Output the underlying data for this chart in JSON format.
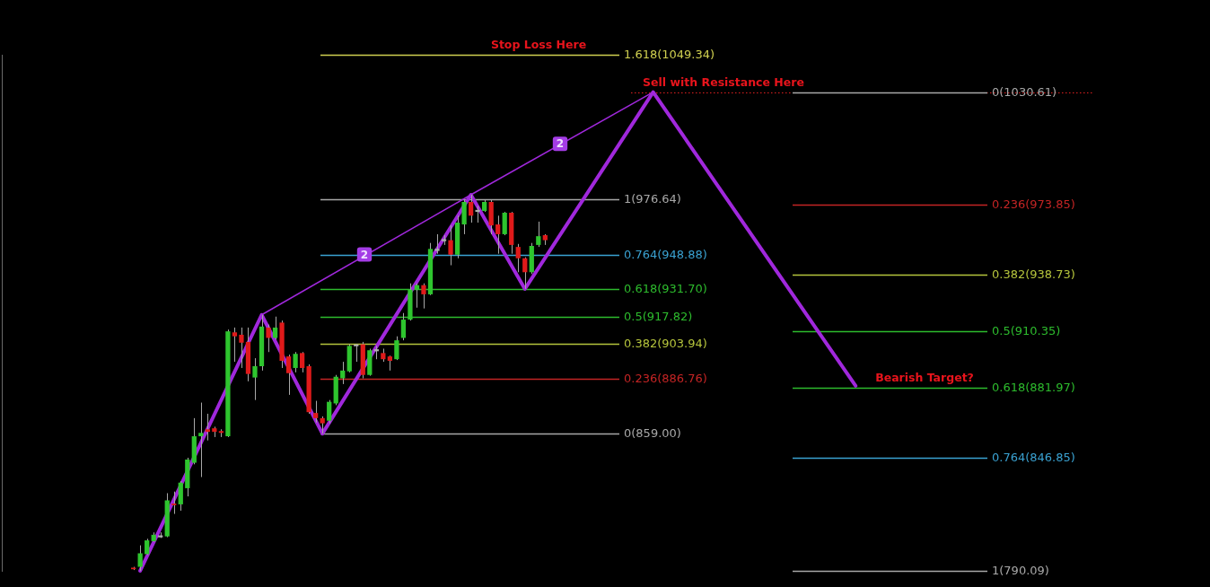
{
  "chart_data": {
    "type": "candlestick",
    "categories": [
      null,
      null,
      null,
      null,
      null,
      null,
      null,
      null,
      null,
      null,
      null,
      null,
      null,
      null,
      null,
      null,
      null,
      null,
      null,
      null,
      null,
      null,
      null,
      null,
      null,
      null,
      null,
      null,
      null,
      null,
      null,
      null,
      null,
      null,
      null,
      null,
      null,
      null,
      null,
      null,
      null,
      null,
      null,
      null,
      null,
      null,
      null,
      null,
      null,
      null,
      null,
      null,
      null,
      null,
      null,
      null,
      null,
      null,
      null,
      null,
      null,
      null,
      null,
      null,
      null,
      null,
      null,
      null,
      null,
      null,
      null,
      null,
      null,
      null,
      null,
      null,
      null,
      null,
      null,
      null,
      null,
      null,
      null,
      null,
      null,
      null,
      null,
      null,
      null,
      null,
      null,
      null,
      null,
      null,
      null,
      null,
      null,
      null,
      null,
      null,
      null,
      null,
      null,
      null,
      null,
      null,
      null,
      null,
      null,
      null,
      null,
      null,
      null,
      null,
      null,
      null,
      null,
      null,
      null,
      null,
      null,
      null,
      null,
      null,
      null,
      null,
      null,
      null,
      null,
      null,
      null,
      null,
      null,
      null,
      null,
      null,
      null,
      null,
      null,
      null,
      null,
      null,
      null,
      null,
      null,
      null,
      null,
      null,
      null,
      null,
      null,
      null,
      null,
      null,
      null,
      null,
      null,
      null,
      null,
      null,
      null,
      null,
      null,
      null,
      null,
      null,
      null,
      null,
      null,
      null,
      null,
      null,
      null,
      null,
      null,
      null,
      null,
      null,
      null
    ],
    "ohlc": [
      null,
      null,
      null,
      null,
      null,
      null,
      null,
      null,
      null,
      null,
      null,
      null,
      null,
      null,
      null,
      null,
      null,
      null,
      null,
      [
        791.7,
        792.1,
        790.5,
        790.9
      ],
      [
        792.1,
        802.9,
        790.1,
        798.9
      ],
      [
        798.5,
        806.2,
        798.0,
        805.4
      ],
      [
        805.0,
        809.4,
        804.6,
        808.2
      ],
      [
        807.9,
        809.4,
        806.6,
        806.9
      ],
      [
        807.4,
        829.1,
        807.0,
        825.5
      ],
      [
        823.9,
        829.9,
        818.7,
        823.1
      ],
      [
        823.5,
        835.2,
        820.3,
        834.4
      ],
      [
        831.6,
        846.9,
        827.5,
        846.0
      ],
      [
        844.4,
        866.8,
        843.6,
        857.7
      ],
      [
        857.7,
        874.6,
        837.2,
        859.4
      ],
      [
        861.2,
        869.0,
        855.6,
        859.9
      ],
      [
        861.7,
        862.5,
        857.3,
        859.9
      ],
      [
        860.3,
        861.2,
        857.3,
        859.4
      ],
      [
        857.7,
        911.3,
        857.3,
        910.4
      ],
      [
        909.9,
        912.3,
        895.1,
        907.9
      ],
      [
        908.7,
        912.3,
        892.0,
        904.7
      ],
      [
        905.1,
        912.3,
        885.3,
        889.0
      ],
      [
        887.2,
        896.9,
        875.9,
        892.9
      ],
      [
        892.9,
        918.7,
        890.7,
        912.8
      ],
      [
        912.3,
        913.8,
        900.0,
        907.1
      ],
      [
        907.1,
        917.8,
        906.3,
        912.3
      ],
      [
        914.8,
        915.8,
        892.0,
        895.6
      ],
      [
        897.8,
        898.7,
        878.5,
        889.4
      ],
      [
        892.0,
        900.0,
        889.8,
        899.1
      ],
      [
        899.5,
        900.0,
        889.8,
        892.0
      ],
      [
        892.9,
        893.8,
        869.0,
        869.8
      ],
      [
        869.4,
        875.5,
        864.6,
        866.8
      ],
      [
        866.8,
        867.7,
        859.0,
        864.2
      ],
      [
        865.5,
        875.9,
        864.2,
        875.0
      ],
      [
        874.2,
        888.5,
        873.3,
        887.6
      ],
      [
        886.8,
        895.1,
        883.9,
        890.7
      ],
      [
        890.3,
        903.9,
        889.8,
        903.1
      ],
      [
        903.8,
        904.0,
        895.1,
        902.9
      ],
      [
        903.9,
        905.1,
        886.8,
        888.5
      ],
      [
        888.5,
        901.7,
        888.1,
        900.9
      ],
      [
        901.4,
        903.1,
        896.4,
        900.4
      ],
      [
        899.5,
        901.7,
        895.1,
        896.4
      ],
      [
        897.8,
        898.2,
        890.7,
        895.6
      ],
      [
        896.4,
        907.9,
        896.0,
        905.9
      ],
      [
        907.1,
        919.6,
        905.9,
        916.3
      ],
      [
        916.3,
        934.5,
        915.8,
        931.3
      ],
      [
        931.3,
        934.5,
        922.3,
        933.6
      ],
      [
        933.6,
        934.5,
        921.9,
        929.0
      ],
      [
        929.0,
        954.8,
        928.6,
        951.8
      ],
      [
        951.8,
        959.2,
        949.4,
        950.8
      ],
      [
        956.7,
        958.7,
        953.8,
        955.7
      ],
      [
        956.2,
        963.6,
        943.6,
        948.9
      ],
      [
        948.9,
        968.5,
        947.1,
        965.0
      ],
      [
        964.1,
        976.6,
        959.2,
        975.4
      ],
      [
        975.4,
        979.0,
        965.0,
        968.5
      ],
      [
        971.4,
        973.4,
        965.0,
        970.4
      ],
      [
        970.9,
        976.6,
        970.4,
        975.4
      ],
      [
        975.4,
        976.6,
        959.2,
        963.6
      ],
      [
        964.1,
        968.5,
        949.4,
        959.2
      ],
      [
        959.2,
        970.4,
        958.7,
        970.0
      ],
      [
        970.0,
        970.4,
        949.4,
        953.8
      ],
      [
        952.8,
        954.3,
        940.1,
        947.1
      ],
      [
        947.1,
        947.6,
        931.7,
        940.1
      ],
      [
        940.1,
        954.8,
        939.2,
        953.3
      ],
      [
        953.8,
        965.5,
        952.8,
        958.2
      ],
      [
        958.7,
        959.2,
        953.8,
        956.2
      ],
      null,
      null,
      null,
      null,
      null,
      null,
      null,
      null,
      null,
      null,
      null,
      null,
      null,
      null,
      null,
      null,
      null,
      null,
      null,
      null,
      null,
      null,
      null,
      null,
      null,
      null,
      null,
      null,
      null,
      null,
      null,
      null,
      null,
      null,
      null,
      null,
      null,
      null,
      null,
      null,
      null,
      null,
      null,
      null,
      null,
      null,
      null,
      null,
      null,
      null,
      null,
      null,
      null,
      null,
      null,
      null,
      null,
      null,
      null,
      null,
      null,
      null,
      null,
      null,
      null,
      null,
      null,
      null,
      null,
      null,
      null,
      null,
      null,
      null,
      null,
      null,
      null,
      null,
      null,
      null,
      null,
      null,
      null,
      null,
      null,
      null,
      null,
      null,
      null,
      null,
      null,
      null,
      null,
      null,
      null,
      null,
      null,
      null
    ],
    "colors": [
      null,
      null,
      null,
      null,
      null,
      null,
      null,
      null,
      null,
      null,
      null,
      null,
      null,
      null,
      null,
      null,
      null,
      null,
      null,
      "#e01a1a",
      "#2ec52e",
      "#2ec52e",
      "#2ec52e",
      "#b0b0b0",
      "#2ec52e",
      "#e01a1a",
      "#2ec52e",
      "#2ec52e",
      "#2ec52e",
      "#2ec52e",
      "#e01a1a",
      "#e01a1a",
      "#e01a1a",
      "#2ec52e",
      "#e01a1a",
      "#e01a1a",
      "#e01a1a",
      "#2ec52e",
      "#2ec52e",
      "#e01a1a",
      "#2ec52e",
      "#e01a1a",
      "#e01a1a",
      "#2ec52e",
      "#e01a1a",
      "#e01a1a",
      "#e01a1a",
      "#e01a1a",
      "#2ec52e",
      "#2ec52e",
      "#2ec52e",
      "#2ec52e",
      "#b0b0b0",
      "#e01a1a",
      "#2ec52e",
      "#b0b0b0",
      "#e01a1a",
      "#e01a1a",
      "#2ec52e",
      "#2ec52e",
      "#2ec52e",
      "#2ec52e",
      "#e01a1a",
      "#2ec52e",
      "#b0b0b0",
      "#b0b0b0",
      "#e01a1a",
      "#2ec52e",
      "#2ec52e",
      "#e01a1a",
      "#b0b0b0",
      "#2ec52e",
      "#e01a1a",
      "#e01a1a",
      "#2ec52e",
      "#e01a1a",
      "#e01a1a",
      "#e01a1a",
      "#2ec52e",
      "#2ec52e",
      "#e01a1a",
      null,
      null,
      null,
      null,
      null,
      null,
      null,
      null,
      null,
      null,
      null,
      null,
      null,
      null,
      null,
      null,
      null,
      null,
      null,
      null,
      null,
      null,
      null,
      null,
      null,
      null,
      null,
      null,
      null,
      null,
      null,
      null,
      null,
      null,
      null,
      null,
      null,
      null,
      null,
      null,
      null,
      null,
      null,
      null,
      null,
      null,
      null,
      null,
      null,
      null,
      null,
      null,
      null,
      null,
      null,
      null,
      null,
      null,
      null,
      null,
      null,
      null,
      null,
      null,
      null,
      null,
      null,
      null,
      null,
      null,
      null,
      null,
      null,
      null,
      null,
      null,
      null,
      null,
      null,
      null,
      null,
      null,
      null,
      null,
      null,
      null,
      null,
      null,
      null,
      null,
      null,
      null,
      null,
      null,
      null,
      null,
      null,
      null
    ],
    "series": [
      {
        "type": "line",
        "color": "#a028dc",
        "values": [
          null,
          null,
          null,
          null,
          null,
          null,
          null,
          null,
          null,
          null,
          null,
          null,
          null,
          null,
          null,
          null,
          null,
          null,
          null,
          null,
          790.1,
          null,
          null,
          null,
          null,
          null,
          null,
          null,
          null,
          null,
          null,
          null,
          null,
          null,
          null,
          null,
          null,
          null,
          918.7,
          null,
          null,
          null,
          null,
          null,
          null,
          null,
          null,
          859.0,
          null,
          null,
          null,
          null,
          null,
          null,
          null,
          null,
          null,
          null,
          null,
          null,
          null,
          null,
          null,
          null,
          null,
          null,
          null,
          null,
          null,
          979,
          null,
          null,
          null,
          null,
          null,
          null,
          null,
          931.7,
          null,
          null,
          null,
          null,
          null,
          null,
          null,
          null,
          null,
          null,
          null,
          null,
          null,
          null,
          null,
          null,
          null,
          null,
          1030.6,
          null,
          null,
          null,
          null,
          null,
          null,
          null,
          null,
          null,
          null,
          null,
          null,
          null,
          null,
          null,
          null,
          null,
          null,
          null,
          null,
          null,
          null,
          null,
          null,
          null,
          null,
          null,
          null,
          null,
          883,
          null,
          null,
          null,
          null,
          null,
          null,
          null,
          null,
          null,
          null,
          null,
          null,
          null,
          null,
          null,
          null,
          null,
          null,
          null,
          null,
          null,
          null,
          null,
          null,
          null,
          null,
          null,
          null,
          null,
          null,
          null,
          null,
          null,
          null,
          null,
          null,
          null,
          null,
          null,
          null,
          null,
          null,
          null,
          null,
          null,
          null,
          null,
          null,
          null,
          null,
          null,
          null
        ]
      },
      {
        "type": "line",
        "color": "#a028dc",
        "values": [
          null,
          null,
          null,
          null,
          null,
          null,
          null,
          null,
          null,
          null,
          null,
          null,
          null,
          null,
          null,
          null,
          null,
          null,
          null,
          null,
          null,
          null,
          null,
          null,
          null,
          null,
          null,
          null,
          null,
          null,
          null,
          null,
          null,
          null,
          null,
          null,
          null,
          null,
          918.7,
          null,
          null,
          null,
          null,
          null,
          null,
          null,
          null,
          null,
          null,
          null,
          null,
          null,
          null,
          null,
          null,
          null,
          null,
          null,
          null,
          null,
          null,
          null,
          null,
          null,
          null,
          null,
          null,
          null,
          null,
          979,
          null,
          null,
          null,
          null,
          null,
          null,
          null,
          null,
          null,
          null,
          null,
          null,
          null,
          null,
          null,
          null,
          null,
          null,
          null,
          null,
          null,
          null,
          null,
          null,
          null,
          null,
          1030.6,
          null,
          null,
          null,
          null,
          null,
          null,
          null,
          null,
          null,
          null,
          null,
          null,
          null,
          null,
          null,
          null,
          null,
          null,
          null,
          null,
          null,
          null,
          null,
          null,
          null,
          null,
          null,
          null,
          null,
          null,
          null,
          null,
          null,
          null,
          null,
          null,
          null,
          null,
          null,
          null,
          null,
          null,
          null,
          null,
          null,
          null,
          null,
          null,
          null,
          null,
          null,
          null,
          null,
          null,
          null,
          null,
          null,
          null,
          null,
          null,
          null,
          null,
          null,
          null,
          null,
          null,
          null,
          null,
          null,
          null,
          null,
          null,
          null,
          null,
          null,
          null,
          null,
          null,
          null,
          null,
          null,
          null
        ]
      }
    ],
    "ylim": [
      790.09,
      1049.34
    ],
    "tick_labels": false,
    "ref_lines": [
      {
        "axis": "y",
        "value": 1049.34,
        "label": "1.618(1049.34)",
        "color": "#d0d050"
      },
      {
        "axis": "y",
        "value": 976.64,
        "label": "1(976.64)",
        "color": "#a8a8a8"
      },
      {
        "axis": "y",
        "value": 948.88,
        "label": "0.764(948.88)",
        "color": "#3aa2d2"
      },
      {
        "axis": "y",
        "value": 931.7,
        "label": "0.618(931.70)",
        "color": "#2dbb2d"
      },
      {
        "axis": "y",
        "value": 917.82,
        "label": "0.5(917.82)",
        "color": "#2dbb2d"
      },
      {
        "axis": "y",
        "value": 903.94,
        "label": "0.382(903.94)",
        "color": "#b5c43c"
      },
      {
        "axis": "y",
        "value": 886.76,
        "label": "0.236(886.76)",
        "color": "#c42424"
      },
      {
        "axis": "y",
        "value": 859.0,
        "label": "0(859.00)",
        "color": "#a8a8a8"
      },
      {
        "axis": "y",
        "value": 1030.61,
        "label": "0(1030.61)",
        "color": "#a8a8a8"
      },
      {
        "axis": "y",
        "value": 973.85,
        "label": "0.236(973.85)",
        "color": "#c42424"
      },
      {
        "axis": "y",
        "value": 938.73,
        "label": "0.382(938.73)",
        "color": "#b5c43c"
      },
      {
        "axis": "y",
        "value": 910.35,
        "label": "0.5(910.35)",
        "color": "#2dbb2d"
      },
      {
        "axis": "y",
        "value": 881.97,
        "label": "0.618(881.97)",
        "color": "#2dbb2d"
      },
      {
        "axis": "y",
        "value": 846.85,
        "label": "0.764(846.85)",
        "color": "#3aa2d2"
      },
      {
        "axis": "y",
        "value": 790.09,
        "label": "1(790.09)",
        "color": "#a8a8a8"
      },
      {
        "axis": "y",
        "value": 1030.61,
        "color": "#e02020",
        "line_style": "dotted"
      }
    ],
    "annotations": [
      {
        "text": "Stop Loss Here",
        "y": 1049.34
      },
      {
        "text": "Sell with Resistance Here",
        "y": 1030.61
      },
      {
        "text": "Bearish Target?",
        "y": 881.97
      },
      {
        "text": "2",
        "y": 949
      },
      {
        "text": "2",
        "y": 1004.6
      }
    ]
  }
}
